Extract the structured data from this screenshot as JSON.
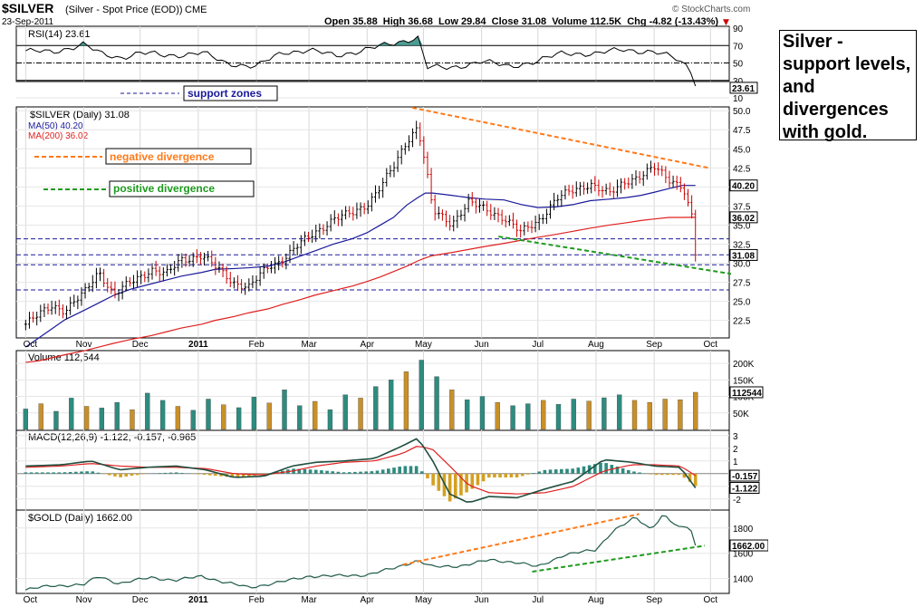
{
  "header": {
    "symbol": "$SILVER",
    "description": "(Silver - Spot Price (EOD))",
    "exchange": "CME",
    "date": "23-Sep-2011",
    "ohlc": "Open 35.88  High 36.68  Low 29.84  Close 31.08  Volume 112.5K  Chg -4.82 (-13.43%)",
    "down_marker": "▼",
    "watermark": "© StockCharts.com"
  },
  "annotation_box": {
    "lines": [
      "Silver -",
      "support levels,",
      "and",
      "divergences",
      "with gold."
    ]
  },
  "legend_boxes": {
    "support": "support zones",
    "negative": "negative divergence",
    "positive": "positive divergence"
  },
  "colors": {
    "price_up": "#000000",
    "price_down": "#cc0000",
    "ma50": "#1a1a9a",
    "ma200": "#e02020",
    "volume_up": "#2e8b7f",
    "volume_down": "#c8902a",
    "macd": "#1f4f3f",
    "signal": "#e02020",
    "hist_pos": "#2e8b7f",
    "hist_neg": "#d4a020",
    "gold": "#1f5a4a",
    "rsi_fill": "#2e8b7f",
    "orange": "#ff7a1a",
    "green": "#1e9a1e",
    "support": "#1a1a9a"
  },
  "months": [
    "Oct",
    "Nov",
    "Dec",
    "2011",
    "Feb",
    "Mar",
    "Apr",
    "May",
    "Jun",
    "Jul",
    "Aug",
    "Sep",
    "Oct"
  ],
  "chart_data": [
    {
      "type": "line",
      "name": "RSI",
      "title": "RSI(14) 23.61",
      "yticks": [
        90,
        70,
        50,
        30,
        10
      ],
      "ylim": [
        10,
        90
      ],
      "levels": [
        70,
        50,
        30
      ],
      "last_label": "23.61",
      "x": [
        "2010-10-01",
        "2010-10-15",
        "2010-11-01",
        "2010-11-10",
        "2010-11-20",
        "2010-12-01",
        "2010-12-15",
        "2011-01-03",
        "2011-01-15",
        "2011-02-01",
        "2011-02-15",
        "2011-03-01",
        "2011-03-15",
        "2011-04-01",
        "2011-04-15",
        "2011-04-28",
        "2011-05-03",
        "2011-05-15",
        "2011-06-01",
        "2011-06-15",
        "2011-07-01",
        "2011-07-15",
        "2011-08-01",
        "2011-08-15",
        "2011-09-01",
        "2011-09-12",
        "2011-09-20",
        "2011-09-23"
      ],
      "values": [
        64,
        62,
        72,
        60,
        56,
        62,
        58,
        62,
        50,
        46,
        62,
        65,
        58,
        66,
        72,
        80,
        45,
        44,
        52,
        46,
        52,
        62,
        60,
        66,
        62,
        56,
        45,
        23.61
      ]
    },
    {
      "type": "bar",
      "name": "$SILVER (Daily)",
      "title": "$SILVER (Daily) 31.08",
      "legend": [
        "MA(50) 40.20",
        "MA(200) 36.02"
      ],
      "yticks": [
        50.0,
        47.5,
        45.0,
        42.5,
        40.0,
        37.5,
        35.0,
        32.5,
        30.0,
        27.5,
        25.0,
        22.5
      ],
      "ylim": [
        20.2,
        50.5
      ],
      "price_labels": [
        "40.20",
        "36.02",
        "31.08"
      ],
      "x": [
        "2010-10-01",
        "2010-10-08",
        "2010-10-15",
        "2010-10-22",
        "2010-11-01",
        "2010-11-09",
        "2010-11-17",
        "2010-11-26",
        "2010-12-07",
        "2010-12-15",
        "2010-12-23",
        "2011-01-03",
        "2011-01-10",
        "2011-01-20",
        "2011-01-28",
        "2011-02-07",
        "2011-02-15",
        "2011-02-24",
        "2011-03-04",
        "2011-03-14",
        "2011-03-24",
        "2011-04-01",
        "2011-04-08",
        "2011-04-15",
        "2011-04-22",
        "2011-04-28",
        "2011-05-02",
        "2011-05-06",
        "2011-05-16",
        "2011-05-25",
        "2011-06-03",
        "2011-06-13",
        "2011-06-22",
        "2011-07-01",
        "2011-07-11",
        "2011-07-20",
        "2011-07-29",
        "2011-08-08",
        "2011-08-17",
        "2011-08-25",
        "2011-09-01",
        "2011-09-09",
        "2011-09-16",
        "2011-09-21",
        "2011-09-23"
      ],
      "values": [
        22.0,
        23.2,
        24.5,
        23.8,
        26.0,
        29.0,
        25.8,
        27.5,
        29.2,
        28.5,
        30.5,
        31.0,
        29.5,
        27.5,
        26.8,
        29.5,
        30.5,
        32.5,
        34.0,
        35.8,
        36.5,
        37.8,
        40.0,
        42.5,
        46.0,
        48.0,
        43.0,
        36.8,
        35.2,
        38.0,
        37.0,
        36.0,
        34.0,
        35.5,
        38.5,
        39.5,
        40.5,
        39.0,
        40.8,
        41.5,
        42.5,
        41.0,
        40.2,
        36.5,
        31.08
      ],
      "ma50": [
        19.0,
        20.2,
        21.4,
        22.6,
        23.8,
        24.8,
        25.8,
        26.6,
        27.3,
        27.8,
        28.3,
        28.8,
        29.2,
        29.3,
        29.4,
        29.6,
        30.1,
        30.9,
        31.6,
        32.5,
        33.2,
        34.0,
        35.0,
        36.0,
        37.6,
        38.6,
        39.2,
        39.2,
        38.9,
        38.6,
        38.4,
        38.3,
        37.7,
        37.3,
        37.4,
        37.7,
        38.2,
        38.4,
        38.6,
        38.9,
        39.3,
        39.8,
        40.2,
        40.2,
        40.2
      ],
      "ma200": [
        17.0,
        17.2,
        17.6,
        18.0,
        18.5,
        19.0,
        19.5,
        20.0,
        20.5,
        21.0,
        21.5,
        22.0,
        22.5,
        23.0,
        23.5,
        24.0,
        24.6,
        25.2,
        25.8,
        26.4,
        27.0,
        27.6,
        28.2,
        28.9,
        29.6,
        30.3,
        30.7,
        31.0,
        31.4,
        31.8,
        32.2,
        32.6,
        33.0,
        33.4,
        33.8,
        34.2,
        34.6,
        35.0,
        35.3,
        35.6,
        35.8,
        36.0,
        36.0,
        36.02,
        36.02
      ],
      "support_levels": [
        33.2,
        31.1,
        29.8,
        26.5
      ],
      "annotations": {
        "negative_divergence": {
          "from": [
            "2011-04-25",
            50.4
          ],
          "to": [
            "2011-09-30",
            42.5
          ]
        },
        "positive_divergence": {
          "from": [
            "2011-06-10",
            33.5
          ],
          "to": [
            "2011-10-12",
            28.6
          ]
        }
      }
    },
    {
      "type": "bar",
      "name": "Volume",
      "title": "Volume 112,544",
      "yticks": [
        "200K",
        "150K",
        "100K",
        "50K"
      ],
      "ylim": [
        0,
        225000
      ],
      "last_label": "112544",
      "values": [
        62000,
        78000,
        55000,
        95000,
        70000,
        65000,
        82000,
        60000,
        110000,
        88000,
        70000,
        58000,
        92000,
        75000,
        66000,
        98000,
        80000,
        120000,
        72000,
        85000,
        60000,
        105000,
        95000,
        130000,
        150000,
        175000,
        210000,
        160000,
        120000,
        90000,
        100000,
        82000,
        72000,
        78000,
        88000,
        76000,
        92000,
        86000,
        96000,
        105000,
        88000,
        82000,
        92000,
        90000,
        112544
      ]
    },
    {
      "type": "line",
      "name": "MACD",
      "title": "MACD(12,26,9) -1.122, -0.157, -0.965",
      "yticks": [
        3,
        2,
        1,
        0,
        -1,
        -2
      ],
      "ylim": [
        -2.8,
        3.2
      ],
      "labels": [
        "-0.157",
        "-1.122"
      ],
      "x": [
        "2010-10-01",
        "2010-10-20",
        "2010-11-05",
        "2010-11-20",
        "2010-12-05",
        "2010-12-20",
        "2011-01-05",
        "2011-01-20",
        "2011-02-05",
        "2011-02-20",
        "2011-03-05",
        "2011-03-20",
        "2011-04-05",
        "2011-04-20",
        "2011-04-28",
        "2011-05-06",
        "2011-05-15",
        "2011-05-25",
        "2011-06-05",
        "2011-06-20",
        "2011-07-05",
        "2011-07-20",
        "2011-08-05",
        "2011-08-20",
        "2011-09-01",
        "2011-09-15",
        "2011-09-23"
      ],
      "macd": [
        0.6,
        0.7,
        1.0,
        0.3,
        0.5,
        0.6,
        0.3,
        -0.3,
        -0.2,
        0.6,
        0.9,
        1.0,
        1.2,
        2.2,
        2.8,
        1.0,
        -1.6,
        -2.3,
        -1.8,
        -1.9,
        -1.2,
        -0.6,
        1.1,
        0.9,
        0.6,
        0.5,
        -1.122
      ],
      "signal": [
        0.5,
        0.6,
        0.8,
        0.6,
        0.5,
        0.5,
        0.4,
        0.0,
        -0.1,
        0.2,
        0.6,
        0.9,
        1.0,
        1.6,
        2.2,
        1.9,
        0.6,
        -0.9,
        -1.5,
        -1.6,
        -1.5,
        -1.0,
        0.2,
        0.7,
        0.7,
        0.6,
        -0.157
      ]
    },
    {
      "type": "line",
      "name": "$GOLD (Daily)",
      "title": "$GOLD (Daily) 1662.00",
      "yticks": [
        1800,
        1600,
        1400
      ],
      "ylim": [
        1290,
        1920
      ],
      "last_label": "1662.00",
      "x": [
        "2010-10-01",
        "2010-10-15",
        "2010-11-01",
        "2010-11-09",
        "2010-11-20",
        "2010-12-07",
        "2010-12-20",
        "2011-01-03",
        "2011-01-15",
        "2011-01-28",
        "2011-02-15",
        "2011-03-01",
        "2011-03-15",
        "2011-04-01",
        "2011-04-15",
        "2011-04-28",
        "2011-05-06",
        "2011-05-20",
        "2011-06-05",
        "2011-06-20",
        "2011-07-01",
        "2011-07-15",
        "2011-08-01",
        "2011-08-10",
        "2011-08-22",
        "2011-08-30",
        "2011-09-06",
        "2011-09-14",
        "2011-09-20",
        "2011-09-23"
      ],
      "values": [
        1310,
        1345,
        1350,
        1420,
        1360,
        1410,
        1385,
        1420,
        1370,
        1330,
        1375,
        1420,
        1420,
        1430,
        1480,
        1545,
        1490,
        1500,
        1545,
        1530,
        1490,
        1590,
        1625,
        1780,
        1880,
        1790,
        1910,
        1800,
        1810,
        1662
      ],
      "annotations": {
        "orange_trend": {
          "from": [
            "2011-04-20",
            1510
          ],
          "to": [
            "2011-08-24",
            1910
          ]
        },
        "green_trend": {
          "from": [
            "2011-06-28",
            1455
          ],
          "to": [
            "2011-09-28",
            1660
          ]
        }
      }
    }
  ]
}
